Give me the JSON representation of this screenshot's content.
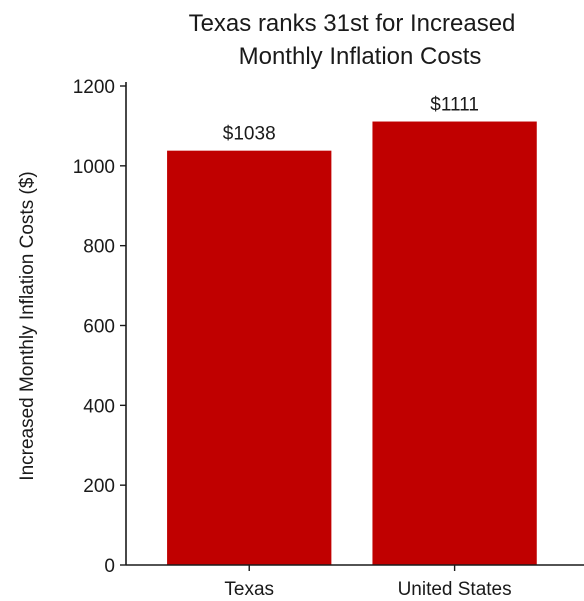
{
  "chart_data": {
    "type": "bar",
    "title_lines": [
      "Texas ranks 31st for Increased",
      "Monthly Inflation Costs"
    ],
    "xlabel": "",
    "ylabel": "Increased Monthly Inflation Costs ($)",
    "categories": [
      "Texas",
      "United States"
    ],
    "values": [
      1038,
      1111
    ],
    "data_labels": [
      "$1038",
      "$1111"
    ],
    "ylim": [
      0,
      1200
    ],
    "yticks": [
      0,
      200,
      400,
      600,
      800,
      1000,
      1200
    ],
    "ytick_labels": [
      "0",
      "200",
      "400",
      "600",
      "800",
      "1000",
      "1200"
    ],
    "bar_color": "#c00000",
    "grid": false
  }
}
